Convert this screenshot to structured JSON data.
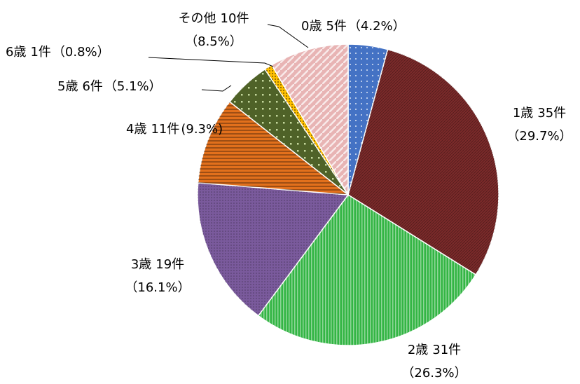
{
  "chart_data": {
    "type": "pie",
    "categories": [
      "0歳",
      "1歳",
      "2歳",
      "3歳",
      "4歳",
      "5歳",
      "6歳",
      "その他"
    ],
    "values": [
      5,
      35,
      31,
      19,
      11,
      6,
      1,
      10
    ],
    "value_labels": [
      "5件",
      "35件",
      "31件",
      "19件",
      "11件",
      "6件",
      "1件",
      "10件"
    ],
    "percentages": [
      4.2,
      29.7,
      26.3,
      16.1,
      9.3,
      5.1,
      0.8,
      8.5
    ],
    "percentage_labels": [
      "（4.2%）",
      "（29.7%）",
      "（26.3%）",
      "（16.1%）",
      "(9.3%)",
      "（5.1%）",
      "（0.8%）",
      "（8.5%）"
    ],
    "colors": [
      "#4472c4",
      "#7b2a2a",
      "#33b544",
      "#7a5a9c",
      "#e2701c",
      "#4f6228",
      "#ffc000",
      "#e8b4b4"
    ]
  }
}
